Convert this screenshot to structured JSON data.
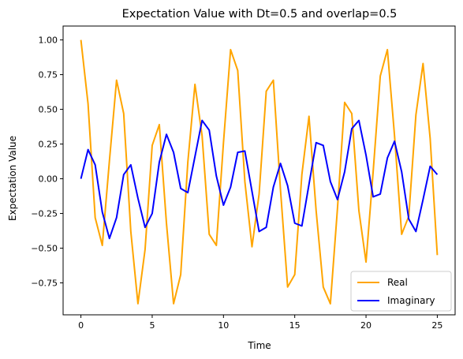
{
  "chart_data": {
    "type": "line",
    "title": "Expectation Value with Dt=0.5 and overlap=0.5",
    "xlabel": "Time",
    "ylabel": "Expectation Value",
    "xlim": [
      -1.25,
      26.25
    ],
    "ylim": [
      -0.98,
      1.1
    ],
    "x_ticks": [
      0,
      5,
      10,
      15,
      20,
      25
    ],
    "x_tick_labels": [
      "0",
      "5",
      "10",
      "15",
      "20",
      "25"
    ],
    "y_ticks": [
      -0.75,
      -0.5,
      -0.25,
      0.0,
      0.25,
      0.5,
      0.75,
      1.0
    ],
    "y_tick_labels": [
      "−0.75",
      "−0.50",
      "−0.25",
      "0.00",
      "0.25",
      "0.50",
      "0.75",
      "1.00"
    ],
    "grid": false,
    "legend_position": "lower-right",
    "x": [
      0,
      0.5,
      1,
      1.5,
      2,
      2.5,
      3,
      3.5,
      4,
      4.5,
      5,
      5.5,
      6,
      6.5,
      7,
      7.5,
      8,
      8.5,
      9,
      9.5,
      10,
      10.5,
      11,
      11.5,
      12,
      12.5,
      13,
      13.5,
      14,
      14.5,
      15,
      15.5,
      16,
      16.5,
      17,
      17.5,
      18,
      18.5,
      19,
      19.5,
      20,
      20.5,
      21,
      21.5,
      22,
      22.5,
      23,
      23.5,
      24,
      24.5,
      25
    ],
    "series": [
      {
        "name": "Real",
        "color": "#ffa500",
        "values": [
          1.0,
          0.54,
          -0.28,
          -0.48,
          0.13,
          0.71,
          0.47,
          -0.38,
          -0.9,
          -0.51,
          0.24,
          0.39,
          -0.32,
          -0.9,
          -0.69,
          0.12,
          0.68,
          0.31,
          -0.4,
          -0.48,
          0.26,
          0.93,
          0.78,
          -0.02,
          -0.49,
          -0.11,
          0.63,
          0.71,
          -0.08,
          -0.78,
          -0.69,
          0.03,
          0.45,
          -0.23,
          -0.78,
          -0.9,
          -0.21,
          0.55,
          0.47,
          -0.23,
          -0.6,
          0.05,
          0.74,
          0.93,
          0.31,
          -0.4,
          -0.27,
          0.46,
          0.83,
          0.29,
          -0.55
        ]
      },
      {
        "name": "Imaginary",
        "color": "#0000ff",
        "values": [
          0.0,
          0.21,
          0.1,
          -0.24,
          -0.43,
          -0.28,
          0.03,
          0.1,
          -0.14,
          -0.35,
          -0.25,
          0.12,
          0.32,
          0.19,
          -0.07,
          -0.1,
          0.16,
          0.42,
          0.35,
          0.02,
          -0.19,
          -0.06,
          0.19,
          0.2,
          -0.09,
          -0.38,
          -0.35,
          -0.06,
          0.11,
          -0.05,
          -0.32,
          -0.34,
          -0.04,
          0.26,
          0.24,
          -0.02,
          -0.15,
          0.05,
          0.36,
          0.42,
          0.17,
          -0.13,
          -0.11,
          0.15,
          0.27,
          0.05,
          -0.29,
          -0.38,
          -0.15,
          0.09,
          0.03
        ]
      }
    ]
  }
}
